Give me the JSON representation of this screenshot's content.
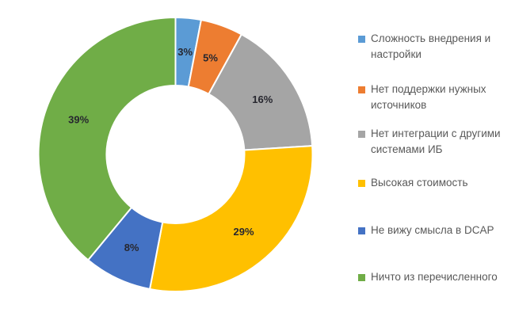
{
  "chart_data": {
    "type": "pie",
    "subtype": "donut",
    "title": "",
    "unit": "%",
    "direction": "clockwise",
    "start_angle_deg": 0,
    "inner_radius_ratio": 0.5,
    "legend_position": "right",
    "background": "#FFFFFF",
    "label_color": "#27272f",
    "legend_text_color": "#595959",
    "slices": [
      {
        "label": "Сложность внедрения и настройки",
        "value": 3,
        "pct_label": "3%",
        "color": "#5B9BD5"
      },
      {
        "label": "Нет поддержки нужных источников",
        "value": 5,
        "pct_label": "5%",
        "color": "#ED7D31"
      },
      {
        "label": "Нет интеграции с другими системами ИБ",
        "value": 16,
        "pct_label": "16%",
        "color": "#A5A5A5"
      },
      {
        "label": "Высокая стоимость",
        "value": 29,
        "pct_label": "29%",
        "color": "#FFC000"
      },
      {
        "label": "Не вижу смысла в DCAP",
        "value": 8,
        "pct_label": "8%",
        "color": "#4472C4"
      },
      {
        "label": "Ничто из перечисленного",
        "value": 39,
        "pct_label": "39%",
        "color": "#70AD47"
      }
    ]
  }
}
